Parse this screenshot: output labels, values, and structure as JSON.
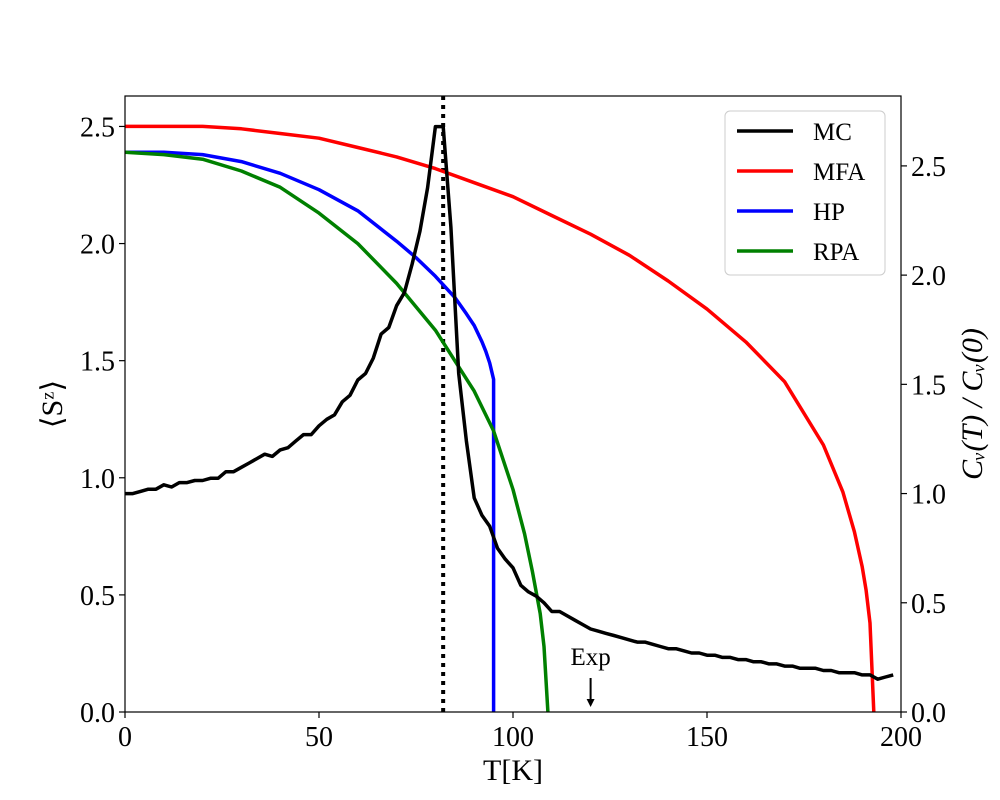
{
  "chart_data": {
    "type": "line",
    "title": "",
    "xlabel": "T[K]",
    "ylabel_left": "⟨Sᶻ⟩",
    "ylabel_right": "Cᵥ(T) / Cᵥ(0)",
    "xlim": [
      0,
      200
    ],
    "ylim_left": [
      0,
      2.63
    ],
    "ylim_right": [
      0,
      2.82
    ],
    "xticks": [
      0,
      50,
      100,
      150,
      200
    ],
    "yticks_left": [
      0.0,
      0.5,
      1.0,
      1.5,
      2.0,
      2.5
    ],
    "yticks_right": [
      0.0,
      0.5,
      1.0,
      1.5,
      2.0,
      2.5
    ],
    "grid": false,
    "legend_position": "top-right",
    "series": [
      {
        "name": "MC",
        "color": "#000000",
        "axis": "right",
        "x": [
          0,
          2,
          4,
          6,
          8,
          10,
          12,
          14,
          16,
          18,
          20,
          22,
          24,
          26,
          28,
          30,
          32,
          34,
          36,
          38,
          40,
          42,
          44,
          46,
          48,
          50,
          52,
          54,
          56,
          58,
          60,
          62,
          64,
          66,
          68,
          70,
          72,
          74,
          76,
          78,
          80,
          82,
          84,
          86,
          88,
          90,
          92,
          94,
          96,
          98,
          100,
          102,
          104,
          106,
          108,
          110,
          112,
          114,
          116,
          118,
          120,
          122,
          124,
          126,
          128,
          130,
          132,
          134,
          136,
          138,
          140,
          142,
          144,
          146,
          148,
          150,
          152,
          154,
          156,
          158,
          160,
          162,
          164,
          166,
          168,
          170,
          172,
          174,
          176,
          178,
          180,
          182,
          184,
          186,
          188,
          190,
          192,
          194,
          196,
          198
        ],
        "y": [
          1.0,
          1.0,
          1.01,
          1.02,
          1.02,
          1.04,
          1.03,
          1.05,
          1.05,
          1.06,
          1.06,
          1.07,
          1.07,
          1.1,
          1.1,
          1.12,
          1.14,
          1.16,
          1.18,
          1.17,
          1.2,
          1.21,
          1.24,
          1.27,
          1.27,
          1.31,
          1.34,
          1.36,
          1.42,
          1.45,
          1.52,
          1.55,
          1.62,
          1.73,
          1.76,
          1.86,
          1.92,
          2.05,
          2.2,
          2.4,
          2.68,
          2.68,
          2.22,
          1.55,
          1.24,
          0.98,
          0.9,
          0.85,
          0.75,
          0.7,
          0.66,
          0.58,
          0.55,
          0.53,
          0.5,
          0.46,
          0.46,
          0.44,
          0.42,
          0.4,
          0.38,
          0.37,
          0.36,
          0.35,
          0.34,
          0.33,
          0.32,
          0.32,
          0.31,
          0.3,
          0.29,
          0.29,
          0.28,
          0.27,
          0.27,
          0.26,
          0.26,
          0.25,
          0.25,
          0.24,
          0.24,
          0.23,
          0.23,
          0.22,
          0.22,
          0.21,
          0.21,
          0.2,
          0.2,
          0.2,
          0.19,
          0.19,
          0.18,
          0.18,
          0.18,
          0.17,
          0.17,
          0.15,
          0.16,
          0.17
        ]
      },
      {
        "name": "MFA",
        "color": "#ff0000",
        "axis": "left",
        "x": [
          0,
          10,
          20,
          30,
          40,
          50,
          60,
          70,
          80,
          90,
          100,
          110,
          120,
          130,
          140,
          150,
          160,
          170,
          180,
          185,
          188,
          190,
          191,
          192,
          193
        ],
        "y": [
          2.5,
          2.5,
          2.5,
          2.49,
          2.47,
          2.45,
          2.41,
          2.37,
          2.32,
          2.26,
          2.2,
          2.12,
          2.04,
          1.95,
          1.84,
          1.72,
          1.58,
          1.41,
          1.14,
          0.94,
          0.77,
          0.62,
          0.52,
          0.38,
          0.0
        ]
      },
      {
        "name": "HP",
        "color": "#0000ff",
        "axis": "left",
        "x": [
          0,
          10,
          20,
          30,
          40,
          50,
          60,
          70,
          75,
          80,
          85,
          88,
          90,
          92,
          93,
          94,
          95,
          95
        ],
        "y": [
          2.39,
          2.39,
          2.38,
          2.35,
          2.3,
          2.23,
          2.14,
          2.01,
          1.94,
          1.86,
          1.77,
          1.7,
          1.65,
          1.58,
          1.54,
          1.49,
          1.42,
          0.0
        ]
      },
      {
        "name": "RPA",
        "color": "#008000",
        "axis": "left",
        "x": [
          0,
          10,
          20,
          30,
          40,
          50,
          60,
          70,
          80,
          85,
          90,
          95,
          100,
          103,
          105,
          107,
          108,
          109
        ],
        "y": [
          2.39,
          2.38,
          2.36,
          2.31,
          2.24,
          2.13,
          2.0,
          1.83,
          1.63,
          1.5,
          1.37,
          1.2,
          0.95,
          0.76,
          0.6,
          0.42,
          0.28,
          0.0
        ]
      }
    ],
    "annotations": [
      {
        "type": "vline",
        "x": 82,
        "style": "dotted",
        "color": "#000000"
      },
      {
        "type": "arrow",
        "text": "Exp",
        "x": 120,
        "y_left": 0.0
      }
    ]
  }
}
